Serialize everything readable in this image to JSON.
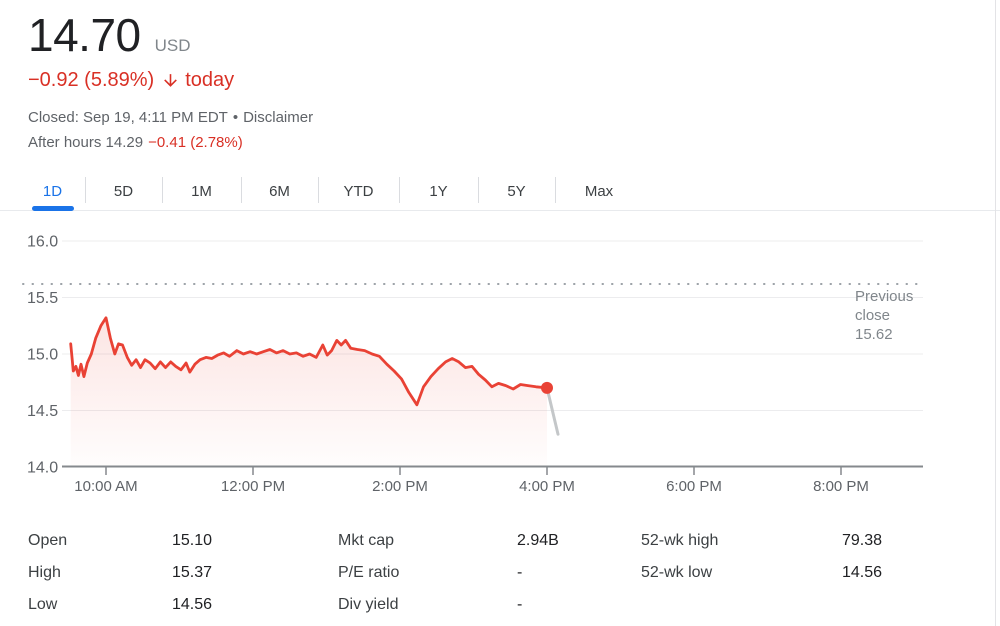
{
  "header": {
    "price": "14.70",
    "currency": "USD",
    "change": "−0.92 (5.89%)",
    "change_suffix": "today",
    "market_status": "Closed: Sep 19, 4:11 PM EDT",
    "separator": "•",
    "disclaimer_label": "Disclaimer",
    "after_hours_text": "After hours 14.29",
    "after_hours_change": "−0.41 (2.78%)",
    "accent_red": "#d93025"
  },
  "tabs": [
    {
      "label": "1D",
      "active": true
    },
    {
      "label": "5D",
      "active": false
    },
    {
      "label": "1M",
      "active": false
    },
    {
      "label": "6M",
      "active": false
    },
    {
      "label": "YTD",
      "active": false
    },
    {
      "label": "1Y",
      "active": false
    },
    {
      "label": "5Y",
      "active": false
    },
    {
      "label": "Max",
      "active": false
    }
  ],
  "chart_data": {
    "type": "area",
    "title": "1D intraday price chart",
    "x_axis": {
      "ticks": [
        {
          "hours": 10,
          "label": "10:00 AM"
        },
        {
          "hours": 12,
          "label": "12:00 PM"
        },
        {
          "hours": 14,
          "label": "2:00 PM"
        },
        {
          "hours": 16,
          "label": "4:00 PM"
        },
        {
          "hours": 18,
          "label": "6:00 PM"
        },
        {
          "hours": 20,
          "label": "8:00 PM"
        }
      ],
      "domain_hours": [
        9.4,
        21.1
      ]
    },
    "y_axis": {
      "labels": [
        {
          "value": 16.0,
          "label": "16.0"
        },
        {
          "value": 15.5,
          "label": "15.5"
        },
        {
          "value": 15.0,
          "label": "15.0"
        },
        {
          "value": 14.5,
          "label": "14.5"
        },
        {
          "value": 14.0,
          "label": "14.0"
        }
      ],
      "grid_values": [
        16.0,
        15.5,
        15.0,
        14.5
      ],
      "axis_value": 14.0,
      "domain": [
        14.0,
        16.0
      ]
    },
    "previous_close": {
      "label": "Previous close",
      "value": "15.62",
      "price": 15.62
    },
    "series": [
      {
        "name": "price",
        "points": [
          [
            9.52,
            15.09
          ],
          [
            9.555,
            14.85
          ],
          [
            9.59,
            14.89
          ],
          [
            9.625,
            14.81
          ],
          [
            9.66,
            14.91
          ],
          [
            9.7,
            14.8
          ],
          [
            9.745,
            14.92
          ],
          [
            9.8,
            15.0
          ],
          [
            9.86,
            15.14
          ],
          [
            9.93,
            15.25
          ],
          [
            10.0,
            15.32
          ],
          [
            10.06,
            15.14
          ],
          [
            10.12,
            15.0
          ],
          [
            10.17,
            15.09
          ],
          [
            10.225,
            15.08
          ],
          [
            10.29,
            14.97
          ],
          [
            10.35,
            14.9
          ],
          [
            10.41,
            14.95
          ],
          [
            10.47,
            14.88
          ],
          [
            10.53,
            14.95
          ],
          [
            10.6,
            14.92
          ],
          [
            10.67,
            14.87
          ],
          [
            10.74,
            14.93
          ],
          [
            10.81,
            14.88
          ],
          [
            10.88,
            14.93
          ],
          [
            10.95,
            14.89
          ],
          [
            11.02,
            14.86
          ],
          [
            11.09,
            14.92
          ],
          [
            11.14,
            14.84
          ],
          [
            11.21,
            14.91
          ],
          [
            11.28,
            14.95
          ],
          [
            11.36,
            14.97
          ],
          [
            11.44,
            14.96
          ],
          [
            11.52,
            14.99
          ],
          [
            11.6,
            15.01
          ],
          [
            11.68,
            14.98
          ],
          [
            11.78,
            15.03
          ],
          [
            11.87,
            15.0
          ],
          [
            11.96,
            15.02
          ],
          [
            12.05,
            15.0
          ],
          [
            12.14,
            15.02
          ],
          [
            12.23,
            15.04
          ],
          [
            12.32,
            15.01
          ],
          [
            12.41,
            15.03
          ],
          [
            12.5,
            15.0
          ],
          [
            12.59,
            15.01
          ],
          [
            12.68,
            14.98
          ],
          [
            12.77,
            15.0
          ],
          [
            12.86,
            14.97
          ],
          [
            12.95,
            15.08
          ],
          [
            13.01,
            14.99
          ],
          [
            13.07,
            15.03
          ],
          [
            13.14,
            15.12
          ],
          [
            13.2,
            15.08
          ],
          [
            13.26,
            15.12
          ],
          [
            13.33,
            15.05
          ],
          [
            13.42,
            15.04
          ],
          [
            13.52,
            15.03
          ],
          [
            13.62,
            15.0
          ],
          [
            13.72,
            14.98
          ],
          [
            13.82,
            14.91
          ],
          [
            13.92,
            14.85
          ],
          [
            14.02,
            14.78
          ],
          [
            14.12,
            14.66
          ],
          [
            14.23,
            14.55
          ],
          [
            14.32,
            14.71
          ],
          [
            14.42,
            14.8
          ],
          [
            14.52,
            14.87
          ],
          [
            14.62,
            14.93
          ],
          [
            14.71,
            14.96
          ],
          [
            14.8,
            14.93
          ],
          [
            14.89,
            14.88
          ],
          [
            14.98,
            14.89
          ],
          [
            15.07,
            14.82
          ],
          [
            15.16,
            14.77
          ],
          [
            15.25,
            14.71
          ],
          [
            15.34,
            14.74
          ],
          [
            15.44,
            14.72
          ],
          [
            15.54,
            14.69
          ],
          [
            15.64,
            14.73
          ],
          [
            15.74,
            14.72
          ],
          [
            15.85,
            14.71
          ],
          [
            16.0,
            14.7
          ]
        ]
      }
    ],
    "after_hours_series": [
      [
        16.0,
        14.7
      ],
      [
        16.15,
        14.29
      ]
    ],
    "end_marker": [
      16.0,
      14.7
    ],
    "colors": {
      "line": "#e94235",
      "fill": "#e94235",
      "after_hours": "#c4c7c9",
      "grid": "#ececee",
      "axis": "#85898d",
      "dotted": "#9aa0a6",
      "tick_label": "#5f6368"
    }
  },
  "stats": {
    "columns": [
      {
        "rows": [
          {
            "label": "Open",
            "value": "15.10"
          },
          {
            "label": "High",
            "value": "15.37"
          },
          {
            "label": "Low",
            "value": "14.56"
          }
        ]
      },
      {
        "rows": [
          {
            "label": "Mkt cap",
            "value": "2.94B"
          },
          {
            "label": "P/E ratio",
            "value": "-"
          },
          {
            "label": "Div yield",
            "value": "-"
          }
        ]
      },
      {
        "rows": [
          {
            "label": "52-wk high",
            "value": "79.38"
          },
          {
            "label": "52-wk low",
            "value": "14.56"
          }
        ]
      }
    ]
  }
}
